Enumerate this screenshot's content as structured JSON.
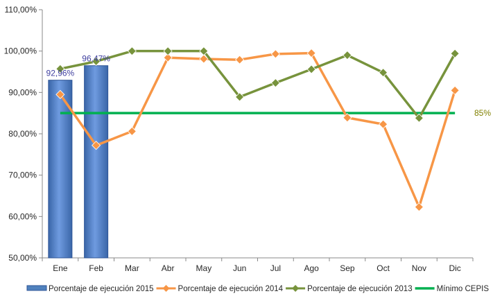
{
  "chart_data": {
    "type": "bar",
    "categories": [
      "Ene",
      "Feb",
      "Mar",
      "Abr",
      "May",
      "Jun",
      "Jul",
      "Ago",
      "Sep",
      "Oct",
      "Nov",
      "Dic"
    ],
    "ylim": [
      50,
      110
    ],
    "yticks": [
      "50,00%",
      "60,00%",
      "70,00%",
      "80,00%",
      "90,00%",
      "100,00%",
      "110,00%"
    ],
    "ytick_values": [
      50,
      60,
      70,
      80,
      90,
      100,
      110
    ],
    "grid": false,
    "legend_position": "bottom",
    "series": [
      {
        "name": "Porcentaje de ejecución 2015",
        "kind": "bar",
        "color": "#4f81bd",
        "values": [
          92.96,
          96.47,
          null,
          null,
          null,
          null,
          null,
          null,
          null,
          null,
          null,
          null
        ],
        "data_labels": [
          "92,96%",
          "96,47%"
        ]
      },
      {
        "name": "Porcentaje de ejecución 2014",
        "kind": "line",
        "color": "#f79646",
        "values": [
          89.5,
          77.2,
          80.6,
          98.4,
          98.1,
          97.9,
          99.3,
          99.5,
          83.9,
          82.3,
          62.3,
          90.5
        ]
      },
      {
        "name": "Porcentaje de ejecución 2013",
        "kind": "line",
        "color": "#77933c",
        "values": [
          95.7,
          97.5,
          100.0,
          100.0,
          100.0,
          88.9,
          92.3,
          95.6,
          99.0,
          94.8,
          83.8,
          99.4
        ]
      },
      {
        "name": "Mínimo CEPIS",
        "kind": "reference",
        "color": "#00b050",
        "values": [
          85,
          85,
          85,
          85,
          85,
          85,
          85,
          85,
          85,
          85,
          85,
          85
        ],
        "label": "85%"
      }
    ]
  }
}
